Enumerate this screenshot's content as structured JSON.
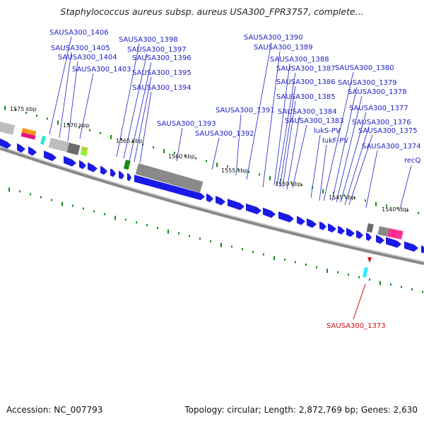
{
  "title": "Staphylococcus aureus subsp. aureus USA300_FPR3757, complete...",
  "footer": {
    "accession": "Accession: NC_007793",
    "info": "Topology: circular; Length: 2,872,769 bp; Genes: 2,630"
  },
  "kbp_labels": [
    "1575 kbp",
    "1570 kbp",
    "1565 kbp",
    "1560 kbp",
    "1555 kbp",
    "1550 kbp",
    "1545 kbp",
    "1540 kbp"
  ],
  "gene_labels": [
    "SAUSA300_1406",
    "SAUSA300_1405",
    "SAUSA300_1404",
    "SAUSA300_1403",
    "SAUSA300_1398",
    "SAUSA300_1397",
    "SAUSA300_1396",
    "SAUSA300_1395",
    "SAUSA300_1394",
    "SAUSA300_1393",
    "SAUSA300_1392",
    "SAUSA300_1391",
    "SAUSA300_1390",
    "SAUSA300_1389",
    "SAUSA300_1388",
    "SAUSA300_1387",
    "SAUSA300_1386",
    "SAUSA300_1385",
    "SAUSA300_1384",
    "SAUSA300_1383",
    "lukS-PV",
    "lukF-PV",
    "SAUSA300_1380",
    "SAUSA300_1379",
    "SAUSA300_1378",
    "SAUSA300_1377",
    "SAUSA300_1376",
    "SAUSA300_1375",
    "SAUSA300_1374",
    "recQ"
  ],
  "highlight_label": "SAUSA300_1373",
  "colors": {
    "gene": "#1a1ae6",
    "label": "#2020c8",
    "highlight": "#d01010",
    "tick": "#1a8a1a",
    "backbone": "#888888"
  }
}
